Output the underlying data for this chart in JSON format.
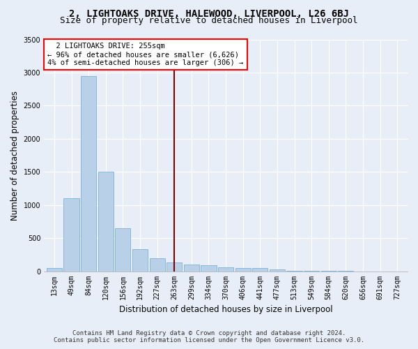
{
  "title": "2, LIGHTOAKS DRIVE, HALEWOOD, LIVERPOOL, L26 6BJ",
  "subtitle": "Size of property relative to detached houses in Liverpool",
  "xlabel": "Distribution of detached houses by size in Liverpool",
  "ylabel": "Number of detached properties",
  "footer_line1": "Contains HM Land Registry data © Crown copyright and database right 2024.",
  "footer_line2": "Contains public sector information licensed under the Open Government Licence v3.0.",
  "bin_labels": [
    "13sqm",
    "49sqm",
    "84sqm",
    "120sqm",
    "156sqm",
    "192sqm",
    "227sqm",
    "263sqm",
    "299sqm",
    "334sqm",
    "370sqm",
    "406sqm",
    "441sqm",
    "477sqm",
    "513sqm",
    "549sqm",
    "584sqm",
    "620sqm",
    "656sqm",
    "691sqm",
    "727sqm"
  ],
  "bar_values": [
    50,
    1100,
    2950,
    1500,
    650,
    330,
    200,
    130,
    100,
    95,
    55,
    50,
    50,
    30,
    8,
    4,
    2,
    1,
    0,
    0,
    0
  ],
  "bar_color": "#b8d0e8",
  "bar_edge_color": "#6aaad4",
  "vline_x_idx": 7.0,
  "vline_color": "#800000",
  "annotation_text": "  2 LIGHTOAKS DRIVE: 255sqm\n← 96% of detached houses are smaller (6,626)\n4% of semi-detached houses are larger (306) →",
  "annotation_box_color": "white",
  "annotation_box_edge": "red",
  "ylim": [
    0,
    3500
  ],
  "yticks": [
    0,
    500,
    1000,
    1500,
    2000,
    2500,
    3000,
    3500
  ],
  "bg_color": "#e8eef7",
  "plot_bg_color": "#e8eef7",
  "title_fontsize": 10,
  "subtitle_fontsize": 9,
  "axis_label_fontsize": 8.5,
  "tick_fontsize": 7,
  "footer_fontsize": 6.5,
  "annotation_fontsize": 7.5
}
